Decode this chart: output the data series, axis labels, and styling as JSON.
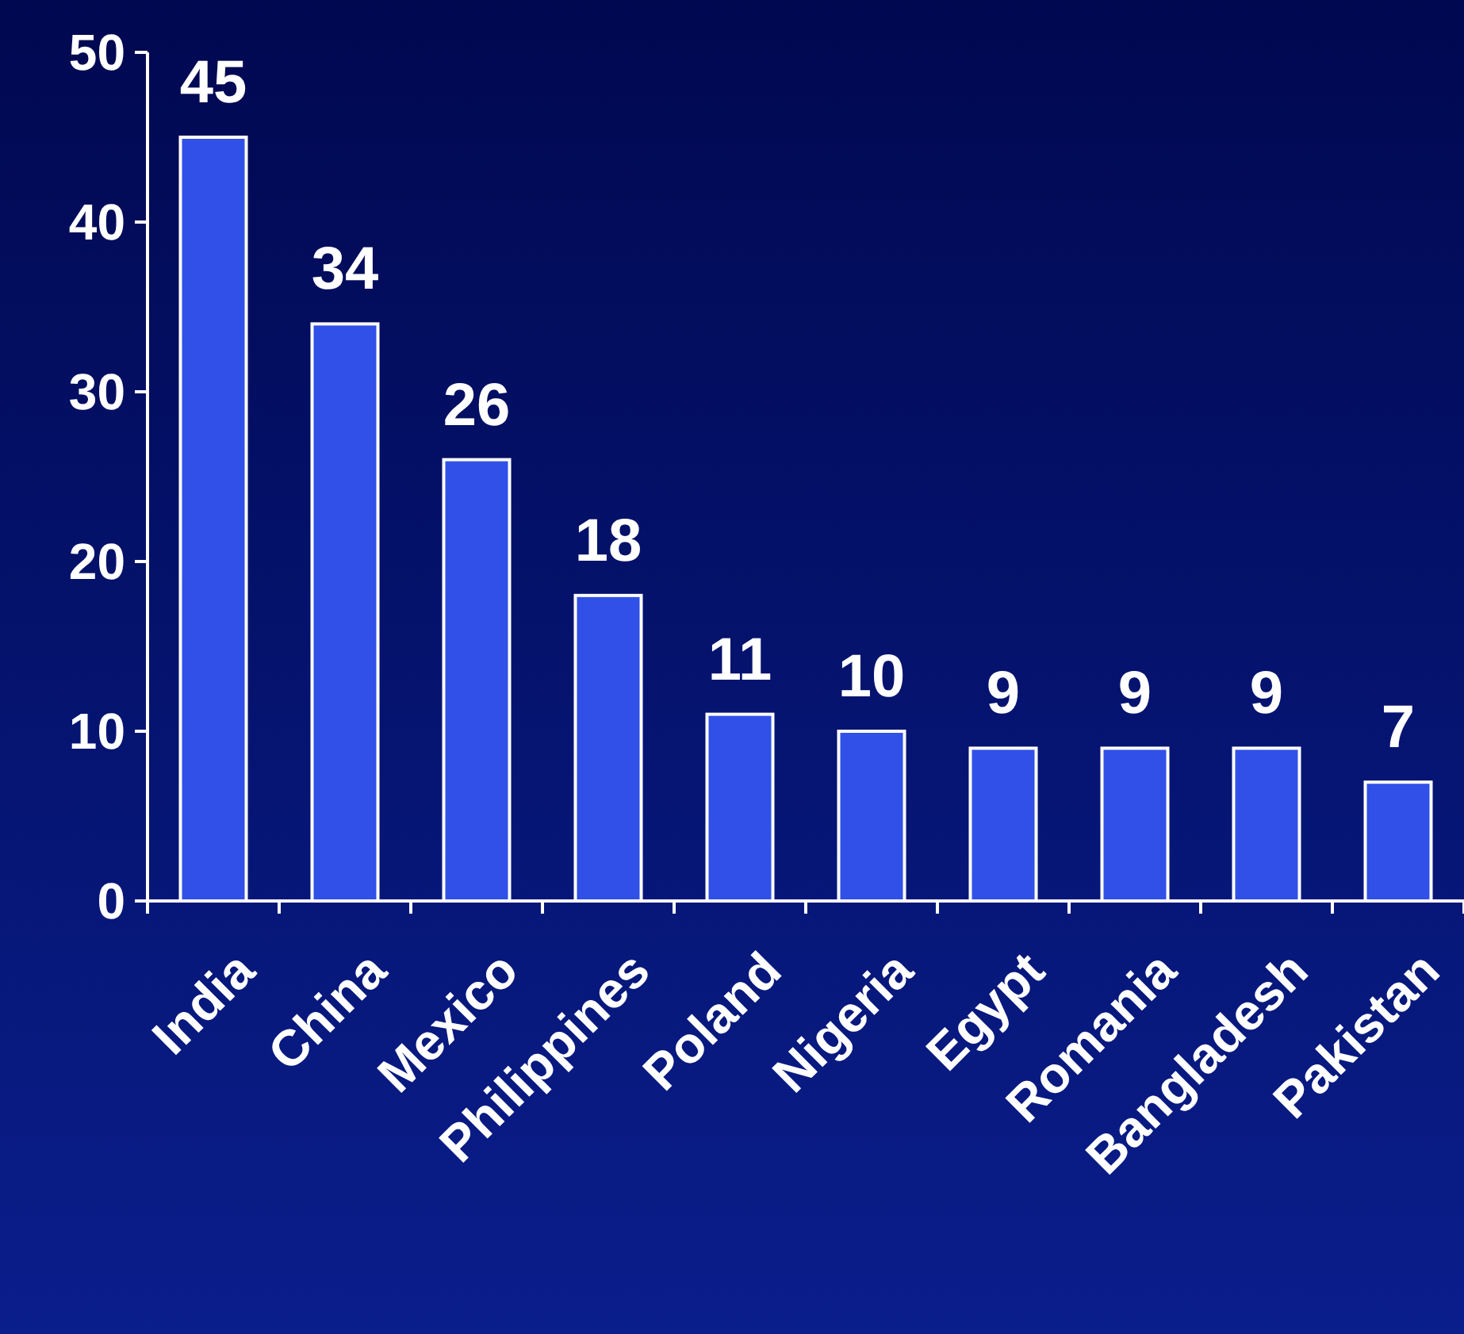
{
  "chart_data": {
    "type": "bar",
    "categories": [
      "India",
      "China",
      "Mexico",
      "Philippines",
      "Poland",
      "Nigeria",
      "Egypt",
      "Romania",
      "Bangladesh",
      "Pakistan"
    ],
    "values": [
      45,
      34,
      26,
      18,
      11,
      10,
      9,
      9,
      9,
      7
    ],
    "color": "#3050e8",
    "ylim": [
      0,
      50
    ],
    "yticks": [
      0,
      10,
      20,
      30,
      40,
      50
    ],
    "data_labels": true
  }
}
